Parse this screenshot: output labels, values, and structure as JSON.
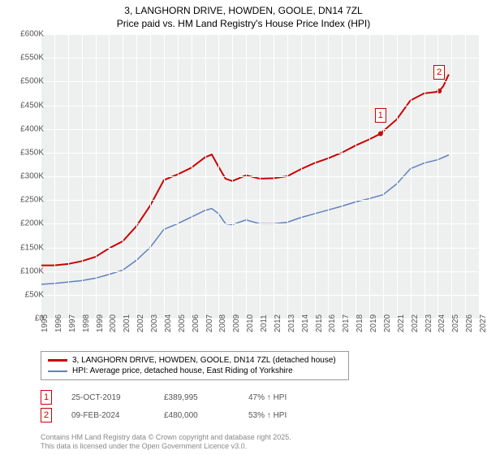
{
  "title_line1": "3, LANGHORN DRIVE, HOWDEN, GOOLE, DN14 7ZL",
  "title_line2": "Price paid vs. HM Land Registry's House Price Index (HPI)",
  "chart": {
    "type": "line",
    "background_color": "#eef0f0",
    "grid_color": "#ffffff",
    "xlim": [
      1995,
      2027
    ],
    "ylim": [
      0,
      600000
    ],
    "ytick_step": 50000,
    "yticks": [
      "£0",
      "£50K",
      "£100K",
      "£150K",
      "£200K",
      "£250K",
      "£300K",
      "£350K",
      "£400K",
      "£450K",
      "£500K",
      "£550K",
      "£600K"
    ],
    "xticks": [
      "1995",
      "1996",
      "1997",
      "1998",
      "1999",
      "2000",
      "2001",
      "2002",
      "2003",
      "2004",
      "2005",
      "2006",
      "2007",
      "2008",
      "2009",
      "2010",
      "2011",
      "2012",
      "2013",
      "2014",
      "2015",
      "2016",
      "2017",
      "2018",
      "2019",
      "2020",
      "2021",
      "2022",
      "2023",
      "2024",
      "2025",
      "2026",
      "2027"
    ],
    "series": [
      {
        "name": "3, LANGHORN DRIVE, HOWDEN, GOOLE, DN14 7ZL (detached house)",
        "color": "#cc0000",
        "line_width": 2,
        "data": [
          [
            1995,
            112000
          ],
          [
            1996,
            112000
          ],
          [
            1997,
            115000
          ],
          [
            1998,
            121000
          ],
          [
            1999,
            130000
          ],
          [
            2000,
            148000
          ],
          [
            2001,
            163000
          ],
          [
            2002,
            195000
          ],
          [
            2003,
            238000
          ],
          [
            2004,
            292000
          ],
          [
            2005,
            304000
          ],
          [
            2006,
            318000
          ],
          [
            2007,
            340000
          ],
          [
            2007.5,
            346000
          ],
          [
            2008,
            320000
          ],
          [
            2008.5,
            295000
          ],
          [
            2009,
            290000
          ],
          [
            2010,
            302000
          ],
          [
            2011,
            295000
          ],
          [
            2012,
            296000
          ],
          [
            2013,
            300000
          ],
          [
            2014,
            315000
          ],
          [
            2015,
            328000
          ],
          [
            2016,
            338000
          ],
          [
            2017,
            350000
          ],
          [
            2018,
            365000
          ],
          [
            2019,
            378000
          ],
          [
            2019.82,
            389995
          ],
          [
            2020,
            395000
          ],
          [
            2021,
            420000
          ],
          [
            2022,
            460000
          ],
          [
            2023,
            475000
          ],
          [
            2023.9,
            478000
          ],
          [
            2024.1,
            480000
          ],
          [
            2024.4,
            490000
          ],
          [
            2024.8,
            515000
          ]
        ]
      },
      {
        "name": "HPI: Average price, detached house, East Riding of Yorkshire",
        "color": "#6080c0",
        "line_width": 1.5,
        "data": [
          [
            1995,
            72000
          ],
          [
            1996,
            74000
          ],
          [
            1997,
            77000
          ],
          [
            1998,
            80000
          ],
          [
            1999,
            85000
          ],
          [
            2000,
            93000
          ],
          [
            2001,
            102000
          ],
          [
            2002,
            123000
          ],
          [
            2003,
            150000
          ],
          [
            2004,
            188000
          ],
          [
            2005,
            200000
          ],
          [
            2006,
            214000
          ],
          [
            2007,
            228000
          ],
          [
            2007.5,
            232000
          ],
          [
            2008,
            221000
          ],
          [
            2008.5,
            200000
          ],
          [
            2009,
            198000
          ],
          [
            2010,
            208000
          ],
          [
            2011,
            200000
          ],
          [
            2012,
            200000
          ],
          [
            2013,
            203000
          ],
          [
            2014,
            213000
          ],
          [
            2015,
            221000
          ],
          [
            2016,
            229000
          ],
          [
            2017,
            237000
          ],
          [
            2018,
            246000
          ],
          [
            2019,
            253000
          ],
          [
            2020,
            261000
          ],
          [
            2021,
            284000
          ],
          [
            2022,
            316000
          ],
          [
            2023,
            328000
          ],
          [
            2024,
            335000
          ],
          [
            2024.8,
            345000
          ]
        ]
      }
    ],
    "markers": [
      {
        "label": "1",
        "x": 2019.82,
        "y": 389995
      },
      {
        "label": "2",
        "x": 2024.11,
        "y": 480000
      }
    ]
  },
  "legend": {
    "row1": {
      "color": "#cc0000",
      "label": "3, LANGHORN DRIVE, HOWDEN, GOOLE, DN14 7ZL (detached house)"
    },
    "row2": {
      "color": "#6080c0",
      "label": "HPI: Average price, detached house, East Riding of Yorkshire"
    }
  },
  "events": {
    "r1": {
      "num": "1",
      "date": "25-OCT-2019",
      "price": "£389,995",
      "pct": "47% ↑ HPI"
    },
    "r2": {
      "num": "2",
      "date": "09-FEB-2024",
      "price": "£480,000",
      "pct": "53% ↑ HPI"
    }
  },
  "copyright": {
    "line1": "Contains HM Land Registry data © Crown copyright and database right 2025.",
    "line2": "This data is licensed under the Open Government Licence v3.0."
  }
}
